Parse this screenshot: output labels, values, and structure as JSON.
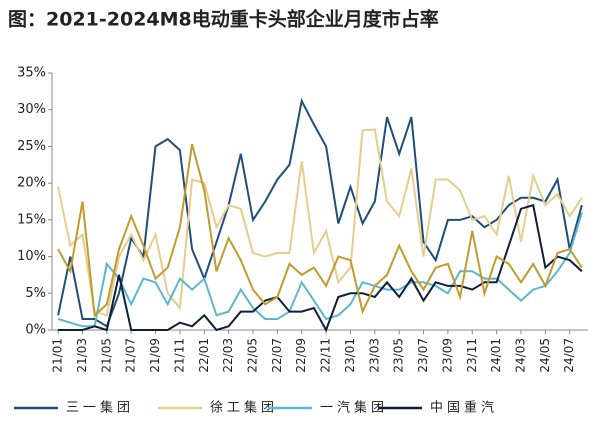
{
  "chart_data": {
    "type": "line",
    "title": "图：2021-2024M8电动重卡头部企业月度市占率",
    "categories": [
      "21/01",
      null,
      "21/03",
      null,
      "21/05",
      null,
      "21/07",
      null,
      "21/09",
      null,
      "21/11",
      null,
      "22/01",
      null,
      "22/03",
      null,
      "22/05",
      null,
      "22/07",
      null,
      "22/09",
      null,
      "22/11",
      null,
      "23/01",
      null,
      "23/03",
      null,
      "23/05",
      null,
      "23/07",
      null,
      "23/09",
      null,
      "23/11",
      null,
      "24/01",
      null,
      "24/03",
      null,
      "24/05",
      null,
      "24/07",
      null
    ],
    "series": [
      {
        "name": "三一集团",
        "color": "#1f4e79",
        "values": [
          2,
          10,
          1.5,
          1.5,
          0.5,
          5,
          12.5,
          10,
          25,
          26,
          24.5,
          11,
          7,
          12,
          17,
          24,
          15,
          17.5,
          20.5,
          22.5,
          31.2,
          28,
          25,
          14.5,
          19.5,
          14.5,
          17.5,
          29,
          24,
          29,
          12,
          9.5,
          15,
          15,
          15.5,
          14,
          15,
          17,
          18,
          18,
          17.5,
          20.5,
          11,
          17
        ]
      },
      {
        "name": "徐工集团",
        "color": "#e6cd8c",
        "values": [
          19.5,
          11.5,
          13,
          2.5,
          2,
          10,
          13,
          9.5,
          13,
          5,
          3,
          20.5,
          20,
          14,
          17,
          16.5,
          10.5,
          10,
          10.5,
          10.5,
          23,
          10.5,
          13.5,
          6.5,
          8.5,
          27.2,
          27.3,
          17.5,
          15.5,
          22,
          10,
          20.5,
          20.5,
          19,
          15,
          15.5,
          13,
          21,
          12,
          21,
          17,
          18.5,
          15.5,
          18
        ]
      },
      {
        "name": "一汽集团",
        "color": "#5bb6cf",
        "values": [
          1.5,
          1,
          0.5,
          0.5,
          9,
          7,
          3.5,
          7,
          6.5,
          3.5,
          7,
          5.5,
          7,
          2,
          2.5,
          5.5,
          3,
          1.5,
          1.5,
          2.5,
          6.5,
          4,
          1.5,
          2,
          3.5,
          6.5,
          6,
          5.5,
          5.5,
          6.5,
          6.5,
          6,
          5,
          8,
          8,
          7,
          7,
          5.5,
          4,
          5.5,
          6,
          8,
          10.5,
          16
        ]
      },
      {
        "name": "中国重汽",
        "color": "#0f1e3c",
        "values": [
          0,
          0,
          0,
          0.5,
          0,
          7.5,
          0,
          0,
          0,
          0,
          1,
          0.5,
          2,
          0,
          0.5,
          2.5,
          2.5,
          4,
          4.5,
          2.5,
          2.5,
          3,
          0,
          4.5,
          5,
          5,
          4.5,
          6.5,
          4.5,
          7,
          4,
          6.5,
          6,
          6,
          5.5,
          6.5,
          6.5,
          11.5,
          16.5,
          17,
          8.5,
          10,
          9.5,
          8
        ]
      },
      {
        "color": "#c49a2c",
        "values": [
          11,
          8,
          17.5,
          2,
          3.5,
          11,
          15.5,
          11.5,
          7,
          8.5,
          14,
          25.3,
          19,
          8,
          12.5,
          9.5,
          5.5,
          3.5,
          4.5,
          9,
          7.5,
          8.5,
          6,
          10,
          9.5,
          2.5,
          6,
          7.5,
          11.5,
          8,
          5.5,
          8.5,
          9,
          4.5,
          13.5,
          5,
          10,
          9,
          6.5,
          9,
          6,
          10.5,
          11,
          8.5
        ]
      }
    ],
    "ylim": [
      0,
      35
    ],
    "yticks": [
      {
        "value": 0,
        "label": "0%"
      },
      {
        "value": 5,
        "label": "5%"
      },
      {
        "value": 10,
        "label": "10%"
      },
      {
        "value": 15,
        "label": "15%"
      },
      {
        "value": 20,
        "label": "20%"
      },
      {
        "value": 25,
        "label": "25%"
      },
      {
        "value": 30,
        "label": "30%"
      },
      {
        "value": 35,
        "label": "35%"
      }
    ],
    "grid": false
  }
}
